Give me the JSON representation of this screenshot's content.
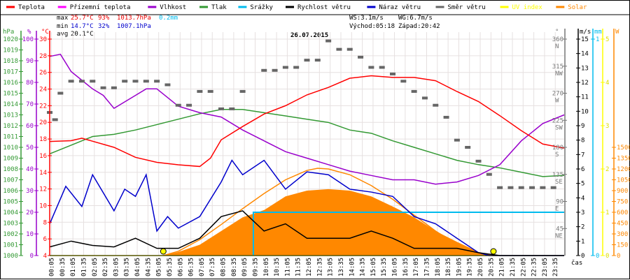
{
  "legend": [
    {
      "label": "Teplota",
      "color": "#ff0000"
    },
    {
      "label": "Přízemní teplota",
      "color": "#ff00ff"
    },
    {
      "label": "Vlhkost",
      "color": "#9900cc"
    },
    {
      "label": "Tlak",
      "color": "#339933"
    },
    {
      "label": "Srážky",
      "color": "#00bbee"
    },
    {
      "label": "Rychlost větru",
      "color": "#000000"
    },
    {
      "label": "Náraz větru",
      "color": "#0000cc"
    },
    {
      "label": "Směr větru",
      "color": "#666666"
    },
    {
      "label": "UV index",
      "color": "#ffff00"
    },
    {
      "label": "Solar",
      "color": "#ff8800"
    }
  ],
  "stats": {
    "max_label": "max",
    "max_temp": "25.7°C",
    "max_hum": "93%",
    "max_press": "1013.7hPa",
    "rain": "0.2mm",
    "min_label": "min",
    "min_temp": "14.7°C",
    "min_hum": "32%",
    "min_press": "1007.1hPa",
    "avg_label": "avg",
    "avg_temp": "20.1°C",
    "ws": "WS:3.1m/s",
    "wg": "WG:6.7m/s",
    "sunrise": "Východ:05:18",
    "sunset": "Západ:20:42"
  },
  "chart_data": {
    "type": "line",
    "title": "26.07.2015",
    "xlabel": "čas",
    "xlim": [
      0,
      24
    ],
    "x_ticks": [
      "00:05",
      "00:35",
      "01:05",
      "01:35",
      "02:05",
      "02:35",
      "03:05",
      "03:35",
      "04:05",
      "04:35",
      "05:05",
      "05:35",
      "06:05",
      "06:35",
      "07:05",
      "07:35",
      "08:05",
      "08:35",
      "09:05",
      "09:35",
      "10:05",
      "10:35",
      "11:05",
      "11:35",
      "12:05",
      "12:35",
      "13:05",
      "13:35",
      "14:05",
      "14:35",
      "15:05",
      "15:35",
      "16:05",
      "16:35",
      "17:05",
      "17:35",
      "18:05",
      "18:35",
      "19:05",
      "19:35",
      "20:05",
      "20:35",
      "21:05",
      "21:35",
      "22:05",
      "22:35",
      "23:05",
      "23:35"
    ],
    "axes": {
      "hpa": {
        "unit": "hPa",
        "range": [
          1000,
          1020
        ],
        "ticks": [
          1000,
          1001,
          1002,
          1003,
          1004,
          1005,
          1006,
          1007,
          1008,
          1009,
          1010,
          1011,
          1012,
          1013,
          1014,
          1015,
          1016,
          1017,
          1018,
          1019,
          1020
        ],
        "color": "#339933"
      },
      "pct": {
        "unit": "%",
        "range": [
          0,
          100
        ],
        "ticks": [
          0,
          10,
          20,
          30,
          40,
          50,
          60,
          70,
          80,
          90,
          100
        ],
        "color": "#9900cc"
      },
      "temp": {
        "unit": "°C",
        "range": [
          4,
          30
        ],
        "ticks": [
          4,
          6,
          8,
          10,
          12,
          14,
          16,
          18,
          20,
          22,
          24,
          26,
          28,
          30
        ],
        "color": "#ff0000"
      },
      "deg": {
        "unit": "°",
        "range": [
          0,
          360
        ],
        "ticks": [
          45,
          90,
          135,
          180,
          225,
          270,
          315,
          360
        ],
        "compass": [
          "NE",
          "E",
          "SE",
          "S",
          "SW",
          "W",
          "NW",
          "N"
        ],
        "color": "#777777"
      },
      "ms": {
        "unit": "m/s",
        "range": [
          0,
          15
        ],
        "ticks": [
          0,
          1,
          2,
          3,
          4,
          5,
          6,
          7,
          8,
          9,
          10,
          11,
          12,
          13,
          14,
          15
        ],
        "color": "#000000"
      },
      "mm": {
        "unit": "mm",
        "range": [
          0,
          1
        ],
        "ticks": [
          0,
          1
        ],
        "color": "#00bbee"
      },
      "uv": {
        "unit": "",
        "range": [
          0,
          5
        ],
        "ticks": [
          0,
          1,
          2,
          3,
          4,
          5
        ],
        "color": "#ffff00"
      },
      "w": {
        "unit": "W",
        "range": [
          0,
          3000
        ],
        "ticks": [
          0,
          150,
          300,
          450,
          600,
          750,
          900,
          1050,
          1200,
          1350,
          1500
        ],
        "color": "#ff8800"
      }
    },
    "series": [
      {
        "name": "Solar",
        "axis": "w",
        "kind": "area",
        "color": "#ff8800",
        "x": [
          5.3,
          6,
          7,
          8,
          9,
          9.5,
          10,
          11,
          12,
          13,
          14,
          15,
          16,
          17,
          18,
          19,
          20,
          20.7
        ],
        "y": [
          0,
          50,
          150,
          340,
          530,
          580,
          630,
          820,
          900,
          920,
          900,
          820,
          680,
          530,
          340,
          190,
          50,
          0
        ]
      },
      {
        "name": "Solar theoretical",
        "axis": "w",
        "kind": "line",
        "color": "#ff8800",
        "x": [
          5.3,
          6,
          7,
          8,
          9,
          10,
          11,
          12,
          12.5,
          13,
          14,
          15,
          16,
          17,
          18,
          19,
          20,
          20.7
        ],
        "y": [
          0,
          60,
          220,
          430,
          650,
          860,
          1050,
          1180,
          1210,
          1200,
          1120,
          970,
          780,
          560,
          340,
          150,
          30,
          0
        ]
      },
      {
        "name": "Tlak",
        "axis": "hpa",
        "kind": "line",
        "color": "#339933",
        "x": [
          0,
          1,
          2,
          3,
          4,
          5,
          6,
          7,
          8,
          9,
          10,
          11,
          12,
          13,
          14,
          15,
          16,
          17,
          18,
          19,
          20,
          21,
          22,
          23,
          24
        ],
        "y": [
          1009.4,
          1010.2,
          1011,
          1011.2,
          1011.6,
          1012.1,
          1012.6,
          1013.1,
          1013.5,
          1013.5,
          1013.2,
          1012.9,
          1012.6,
          1012.3,
          1011.6,
          1011.3,
          1010.6,
          1010,
          1009.4,
          1008.8,
          1008.4,
          1008.1,
          1007.7,
          1007.3,
          1007.4
        ]
      },
      {
        "name": "Vlhkost",
        "axis": "pct",
        "kind": "line",
        "color": "#9900cc",
        "x": [
          0,
          0.5,
          1,
          2,
          2.5,
          3,
          4,
          4.5,
          5,
          5.5,
          6,
          7,
          8,
          9,
          10,
          11,
          12,
          13,
          14,
          15,
          16,
          17,
          18,
          19,
          20,
          21,
          22,
          23,
          24
        ],
        "y": [
          92,
          93,
          85,
          77,
          74,
          68,
          74,
          77,
          77,
          73,
          69,
          66,
          64,
          58,
          53,
          48,
          45,
          42,
          39,
          37,
          35,
          35,
          33,
          34,
          37,
          42,
          53,
          61,
          65
        ]
      },
      {
        "name": "Teplota",
        "axis": "temp",
        "kind": "line",
        "color": "#ff0000",
        "x": [
          0,
          1,
          1.5,
          3,
          4,
          5,
          6,
          7,
          7.5,
          8,
          9,
          10,
          11,
          12,
          13,
          14,
          15,
          16,
          17,
          18,
          19,
          20,
          21,
          22,
          23,
          24
        ],
        "y": [
          17.7,
          17.8,
          18.1,
          17,
          15.8,
          15.2,
          14.9,
          14.7,
          15.7,
          17.9,
          19.5,
          21,
          22,
          23.3,
          24.2,
          25.3,
          25.6,
          25.4,
          25.4,
          25,
          23.7,
          22.5,
          20.8,
          19,
          17.4,
          16.9
        ]
      },
      {
        "name": "Srážky",
        "axis": "mm",
        "kind": "step",
        "color": "#00bbee",
        "x": [
          9.5,
          9.5,
          24
        ],
        "y": [
          0,
          0.2,
          0.2
        ]
      },
      {
        "name": "UV index",
        "axis": "uv",
        "kind": "line",
        "color": "#ffff00",
        "x": [
          0,
          24
        ],
        "y": [
          0,
          0
        ]
      },
      {
        "name": "Náraz větru",
        "axis": "ms",
        "kind": "line",
        "color": "#0000cc",
        "x": [
          0,
          0.75,
          1.5,
          2,
          3,
          3.5,
          4,
          4.5,
          5,
          5.5,
          6,
          7,
          8,
          8.5,
          9,
          10,
          11,
          12,
          13,
          14,
          15,
          16,
          17,
          18,
          19,
          20,
          20.5,
          24
        ],
        "y": [
          2.2,
          4.8,
          3.4,
          5.6,
          3.1,
          4.6,
          4.1,
          5.6,
          1.7,
          2.7,
          1.9,
          2.7,
          5.1,
          6.6,
          5.6,
          6.6,
          4.6,
          5.8,
          5.6,
          4.6,
          4.4,
          4.1,
          2.7,
          2.2,
          1.2,
          0.2,
          0,
          0
        ]
      },
      {
        "name": "Rychlost větru",
        "axis": "ms",
        "kind": "line",
        "color": "#000000",
        "x": [
          0,
          1,
          2,
          3,
          4,
          5,
          6,
          7,
          8,
          9,
          10,
          11,
          12,
          13,
          14,
          15,
          16,
          17,
          18,
          19,
          20,
          21,
          24
        ],
        "y": [
          0.6,
          1,
          0.7,
          0.6,
          1.2,
          0.5,
          0.5,
          1.2,
          2.7,
          3.1,
          1.7,
          2.2,
          1.2,
          1.2,
          1.2,
          1.7,
          1.2,
          0.5,
          0.5,
          0.5,
          0.2,
          0,
          0
        ]
      },
      {
        "name": "Směr větru",
        "axis": "deg",
        "kind": "dash",
        "color": "#666666",
        "x": [
          0,
          0.25,
          0.5,
          1,
          1.5,
          2,
          2.5,
          3,
          3.5,
          4,
          4.5,
          5,
          5.5,
          6,
          6.5,
          7,
          7.5,
          8,
          8.5,
          9,
          10,
          10.5,
          11,
          11.5,
          12,
          12.5,
          13,
          13.5,
          14,
          14.5,
          15,
          15.5,
          16,
          16.5,
          17,
          17.5,
          18,
          18.5,
          19,
          19.5,
          20,
          20.5,
          21,
          21.5,
          22,
          22.5,
          23,
          23.5
        ],
        "y": [
          238,
          226,
          270,
          290,
          290,
          290,
          279,
          279,
          290,
          290,
          290,
          290,
          284,
          250,
          250,
          273,
          273,
          244,
          244,
          273,
          308,
          308,
          313,
          313,
          325,
          325,
          357,
          343,
          343,
          330,
          313,
          313,
          302,
          290,
          273,
          262,
          250,
          230,
          192,
          180,
          157,
          135,
          113,
          113,
          113,
          113,
          113,
          113
        ]
      }
    ],
    "markers": [
      {
        "name": "sunrise",
        "x": 5.3
      },
      {
        "name": "sunset",
        "x": 20.7
      }
    ]
  }
}
